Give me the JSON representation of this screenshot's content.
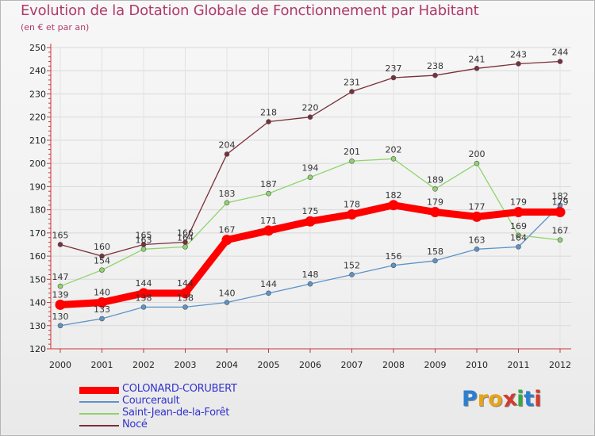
{
  "title": "Evolution de la Dotation Globale de Fonctionnement par Habitant",
  "subtitle": "(en € et par an)",
  "logo": {
    "text": "Proxiti",
    "letters": [
      "P",
      "r",
      "o",
      "x",
      "i",
      "t",
      "i"
    ],
    "colors": [
      "#2b7fd1",
      "#e8a317",
      "#e8a317",
      "#d23b2e",
      "#3aa845",
      "#2b7fd1",
      "#d23b2e"
    ]
  },
  "chart_data": {
    "type": "line",
    "title": "Evolution de la Dotation Globale de Fonctionnement par Habitant",
    "subtitle": "(en € et par an)",
    "xlabel": "",
    "ylabel": "",
    "ylim": [
      120,
      250
    ],
    "ytick_step": 10,
    "ytick_labels": [
      "120",
      "130",
      "140",
      "150",
      "160",
      "170",
      "180",
      "190",
      "200",
      "210",
      "220",
      "230",
      "240",
      "250"
    ],
    "categories": [
      "2000",
      "2001",
      "2002",
      "2003",
      "2004",
      "2005",
      "2006",
      "2007",
      "2008",
      "2009",
      "2010",
      "2011",
      "2012"
    ],
    "series": [
      {
        "name": "COLONARD-CORUBERT",
        "color": "#ff0000",
        "values": [
          139,
          140,
          144,
          144,
          167,
          171,
          175,
          178,
          182,
          179,
          177,
          179,
          179
        ],
        "emphasis": true
      },
      {
        "name": "Courcerault",
        "color": "#5d93c8",
        "values": [
          130,
          133,
          138,
          138,
          140,
          144,
          148,
          152,
          156,
          158,
          163,
          164,
          182
        ]
      },
      {
        "name": "Saint-Jean-de-la-Forêt",
        "color": "#8ed46b",
        "values": [
          147,
          154,
          163,
          164,
          183,
          187,
          194,
          201,
          202,
          189,
          200,
          169,
          167
        ]
      },
      {
        "name": "Nocé",
        "color": "#7a2f3a",
        "values": [
          165,
          160,
          165,
          166,
          204,
          218,
          220,
          231,
          237,
          238,
          241,
          243,
          244
        ]
      }
    ],
    "grid": true,
    "legend": "bottom-left"
  }
}
